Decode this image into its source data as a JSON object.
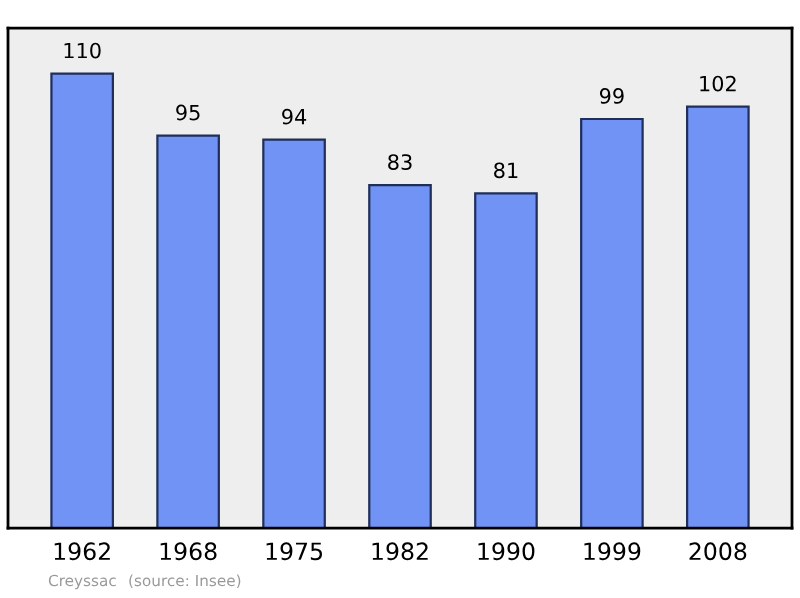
{
  "chart_data": {
    "type": "bar",
    "categories": [
      "1962",
      "1968",
      "1975",
      "1982",
      "1990",
      "1999",
      "2008"
    ],
    "values": [
      110,
      95,
      94,
      83,
      81,
      99,
      102
    ],
    "color": "#7093f5",
    "data_labels": true,
    "grid": false,
    "annotations": [
      "Creyssac",
      "(source: Insee)"
    ]
  }
}
